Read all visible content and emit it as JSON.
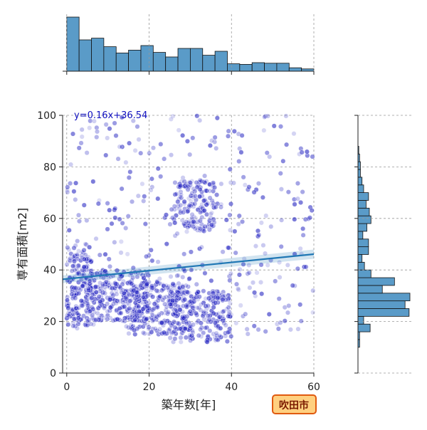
{
  "chart_data": {
    "type": "scatter",
    "title": "",
    "xlabel": "築年数[年]",
    "ylabel": "専有面積[m2]",
    "xlim": [
      -1,
      60
    ],
    "ylim": [
      0,
      100
    ],
    "xticks": [
      "0",
      "20",
      "40",
      "60"
    ],
    "yticks": [
      "0",
      "20",
      "40",
      "60",
      "80",
      "100"
    ],
    "grid": true,
    "annotation": "y=0.16x+36.54",
    "badge": "吹田市",
    "regression": {
      "slope": 0.16,
      "intercept": 36.54
    },
    "colors": {
      "points": "#2020c0",
      "regression": "#1f77b4",
      "histogram": "#5a9bc8",
      "badge_fill": "#ffd080",
      "badge_border": "#e05a10"
    },
    "clusters": [
      {
        "x": [
          0,
          6
        ],
        "y": [
          18,
          50
        ],
        "n": 180
      },
      {
        "x": [
          5,
          20
        ],
        "y": [
          20,
          40
        ],
        "n": 260
      },
      {
        "x": [
          15,
          30
        ],
        "y": [
          15,
          35
        ],
        "n": 220
      },
      {
        "x": [
          25,
          40
        ],
        "y": [
          12,
          32
        ],
        "n": 200
      },
      {
        "x": [
          26,
          36
        ],
        "y": [
          55,
          75
        ],
        "n": 140
      },
      {
        "x": [
          0,
          60
        ],
        "y": [
          15,
          100
        ],
        "n": 360
      }
    ],
    "x_histogram": {
      "bin_width": 3,
      "start": 0,
      "counts": [
        95,
        55,
        58,
        43,
        32,
        37,
        45,
        33,
        25,
        40,
        40,
        28,
        35,
        13,
        12,
        15,
        14,
        14,
        6,
        4
      ]
    },
    "y_histogram": {
      "bin_width": 3,
      "start": 10,
      "counts": [
        2,
        2,
        15,
        7,
        63,
        58,
        64,
        30,
        45,
        16,
        8,
        5,
        13,
        13,
        6,
        11,
        16,
        14,
        10,
        13,
        7,
        5,
        3,
        3,
        2,
        1
      ]
    }
  }
}
